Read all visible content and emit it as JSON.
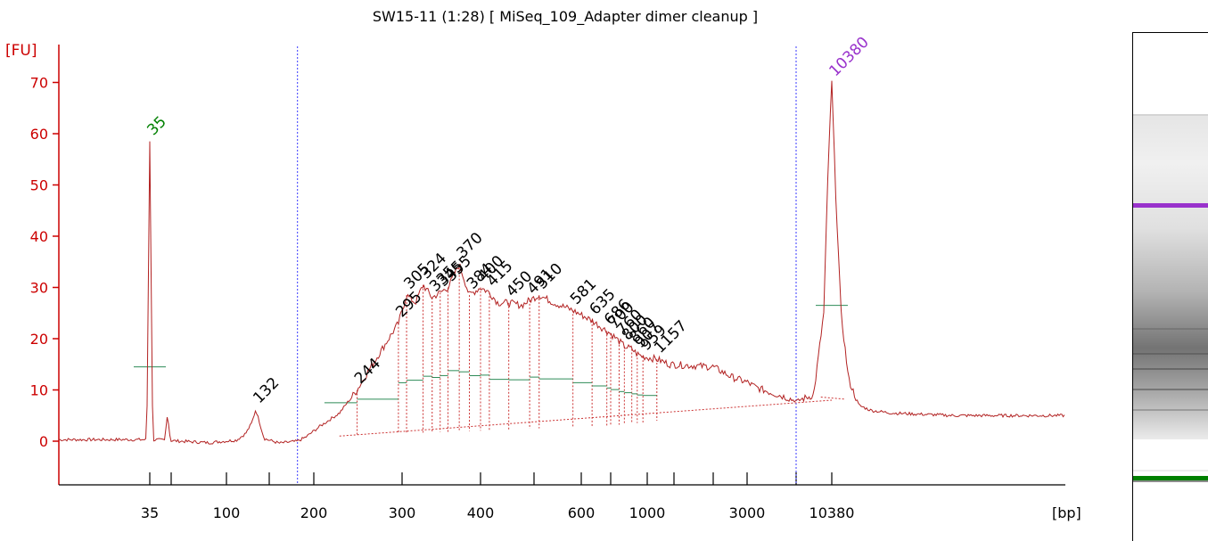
{
  "chart_data": {
    "type": "line",
    "title": "SW15-11 (1:28)  [ MiSeq_109_Adapter dimer cleanup ]",
    "ylabel": "[FU]",
    "xlabel": "[bp]",
    "ylim": [
      -9,
      79
    ],
    "yticks": [
      0,
      10,
      20,
      30,
      40,
      50,
      60,
      70
    ],
    "x_scale": "categorical-log",
    "x_tick_labels": [
      {
        "label": "35",
        "bp": 35
      },
      {
        "label": "100",
        "bp": 100
      },
      {
        "label": "200",
        "bp": 200
      },
      {
        "label": "300",
        "bp": 300
      },
      {
        "label": "400",
        "bp": 400
      },
      {
        "label": "600",
        "bp": 600
      },
      {
        "label": "1000",
        "bp": 1000
      },
      {
        "label": "3000",
        "bp": 3000
      },
      {
        "label": "10380",
        "bp": 10380
      }
    ],
    "x_tick_marks_bp": [
      35,
      50,
      100,
      150,
      200,
      300,
      400,
      500,
      600,
      700,
      1000,
      1500,
      2000,
      3000,
      7000,
      10380
    ],
    "ladder_points": [
      {
        "bp": 35,
        "px": 168
      },
      {
        "bp": 50,
        "px": 192
      },
      {
        "bp": 100,
        "px": 254
      },
      {
        "bp": 150,
        "px": 302
      },
      {
        "bp": 200,
        "px": 352
      },
      {
        "bp": 300,
        "px": 451
      },
      {
        "bp": 400,
        "px": 539
      },
      {
        "bp": 500,
        "px": 599
      },
      {
        "bp": 600,
        "px": 652
      },
      {
        "bp": 700,
        "px": 685
      },
      {
        "bp": 1000,
        "px": 726
      },
      {
        "bp": 1500,
        "px": 756
      },
      {
        "bp": 2000,
        "px": 800
      },
      {
        "bp": 3000,
        "px": 838
      },
      {
        "bp": 7000,
        "px": 893
      },
      {
        "bp": 10380,
        "px": 933
      }
    ],
    "gate_lines_bp": [
      180,
      7000
    ],
    "series": [
      {
        "color": "#b22222",
        "points": [
          [
            35,
            0.3
          ],
          [
            45,
            0.2
          ],
          [
            50,
            0.1
          ],
          [
            80,
            -0.3
          ],
          [
            110,
            0.2
          ],
          [
            120,
            1.5
          ],
          [
            127,
            3.5
          ],
          [
            132,
            6.2
          ],
          [
            137,
            3.6
          ],
          [
            143,
            0.5
          ],
          [
            160,
            -0.4
          ],
          [
            180,
            0.0
          ],
          [
            190,
            0.8
          ],
          [
            205,
            2.8
          ],
          [
            225,
            5.5
          ],
          [
            244,
            10.0
          ],
          [
            260,
            14.5
          ],
          [
            280,
            19.5
          ],
          [
            295,
            23.0
          ],
          [
            305,
            28.5
          ],
          [
            315,
            27.0
          ],
          [
            324,
            30.5
          ],
          [
            335,
            28.0
          ],
          [
            345,
            29.0
          ],
          [
            355,
            30.0
          ],
          [
            370,
            34.5
          ],
          [
            384,
            28.5
          ],
          [
            400,
            30.0
          ],
          [
            415,
            29.0
          ],
          [
            430,
            27.0
          ],
          [
            450,
            27.0
          ],
          [
            475,
            26.5
          ],
          [
            491,
            27.5
          ],
          [
            510,
            28.5
          ],
          [
            540,
            27.0
          ],
          [
            581,
            25.5
          ],
          [
            620,
            24.0
          ],
          [
            635,
            23.5
          ],
          [
            660,
            22.5
          ],
          [
            686,
            21.5
          ],
          [
            700,
            21.0
          ],
          [
            760,
            19.5
          ],
          [
            800,
            18.5
          ],
          [
            860,
            18.0
          ],
          [
            907,
            17.0
          ],
          [
            959,
            16.5
          ],
          [
            1157,
            16.0
          ],
          [
            1400,
            15.0
          ],
          [
            2000,
            14.5
          ],
          [
            2500,
            12.5
          ],
          [
            3000,
            11.5
          ],
          [
            3500,
            10.5
          ],
          [
            4500,
            9.5
          ],
          [
            6000,
            8.5
          ],
          [
            7000,
            7.8
          ],
          [
            8500,
            9.0
          ],
          [
            9500,
            25.0
          ],
          [
            10000,
            55.0
          ],
          [
            10380,
            70.0
          ],
          [
            10800,
            50.0
          ],
          [
            11500,
            25.0
          ],
          [
            12500,
            12.0
          ],
          [
            14000,
            7.0
          ],
          [
            16000,
            6.0
          ],
          [
            20000,
            5.5
          ],
          [
            30000,
            5.2
          ],
          [
            40000,
            5.0
          ]
        ]
      }
    ],
    "extra_spikes": [
      {
        "bp": 35,
        "fu": 58.5
      },
      {
        "bp": 47,
        "fu": 5.2
      }
    ],
    "peak_labels": [
      {
        "label": "35",
        "bp": 35,
        "fu": 58.5,
        "color": "#008000"
      },
      {
        "label": "132",
        "bp": 132,
        "fu": 6.2,
        "color": "#000000"
      },
      {
        "label": "244",
        "bp": 244,
        "fu": 10.0,
        "color": "#000000"
      },
      {
        "label": "295",
        "bp": 295,
        "fu": 23.0,
        "color": "#000000"
      },
      {
        "label": "305",
        "bp": 305,
        "fu": 28.5,
        "color": "#000000"
      },
      {
        "label": "324",
        "bp": 324,
        "fu": 30.5,
        "color": "#000000"
      },
      {
        "label": "335",
        "bp": 335,
        "fu": 28.0,
        "color": "#000000"
      },
      {
        "label": "345",
        "bp": 345,
        "fu": 29.0,
        "color": "#000000"
      },
      {
        "label": "355",
        "bp": 355,
        "fu": 30.0,
        "color": "#000000"
      },
      {
        "label": "370",
        "bp": 370,
        "fu": 34.5,
        "color": "#000000"
      },
      {
        "label": "384",
        "bp": 384,
        "fu": 28.5,
        "color": "#000000"
      },
      {
        "label": "400",
        "bp": 400,
        "fu": 30.0,
        "color": "#000000"
      },
      {
        "label": "415",
        "bp": 415,
        "fu": 29.0,
        "color": "#000000"
      },
      {
        "label": "450",
        "bp": 450,
        "fu": 27.0,
        "color": "#000000"
      },
      {
        "label": "491",
        "bp": 491,
        "fu": 27.5,
        "color": "#000000"
      },
      {
        "label": "510",
        "bp": 510,
        "fu": 28.5,
        "color": "#000000"
      },
      {
        "label": "581",
        "bp": 581,
        "fu": 25.5,
        "color": "#000000"
      },
      {
        "label": "635",
        "bp": 635,
        "fu": 23.5,
        "color": "#000000"
      },
      {
        "label": "686",
        "bp": 686,
        "fu": 21.5,
        "color": "#000000"
      },
      {
        "label": "700",
        "bp": 700,
        "fu": 21.0,
        "color": "#000000"
      },
      {
        "label": "760",
        "bp": 760,
        "fu": 19.5,
        "color": "#000000"
      },
      {
        "label": "800",
        "bp": 800,
        "fu": 18.5,
        "color": "#000000"
      },
      {
        "label": "860",
        "bp": 860,
        "fu": 18.0,
        "color": "#000000"
      },
      {
        "label": "907",
        "bp": 907,
        "fu": 17.0,
        "color": "#000000"
      },
      {
        "label": "959",
        "bp": 959,
        "fu": 16.5,
        "color": "#000000"
      },
      {
        "label": "1157",
        "bp": 1157,
        "fu": 16.0,
        "color": "#000000"
      },
      {
        "label": "10380",
        "bp": 10380,
        "fu": 70.0,
        "color": "#9932cc"
      }
    ],
    "peak_integration": [
      {
        "bp": 35,
        "half_fu": 14.5
      },
      {
        "bp": 10380,
        "half_fu": 26.5
      }
    ],
    "smear_dividers_bp": [
      244,
      295,
      305,
      324,
      335,
      345,
      355,
      370,
      384,
      400,
      415,
      450,
      491,
      510,
      581,
      635,
      686,
      700,
      760,
      800,
      860,
      907,
      959,
      1157
    ],
    "smear_baseline": {
      "start_bp": 225,
      "start_fu": 1.0,
      "end_bp": 10380,
      "end_fu": 8.0
    },
    "grid": false,
    "legend": "none"
  },
  "gel": {
    "colors": {
      "upper_marker": "#9932cc",
      "lower_marker": "#008000"
    },
    "band_levels": [
      {
        "position": 0.16,
        "intensity": 0.15
      },
      {
        "position": 0.34,
        "intensity": 0.9
      },
      {
        "position": 0.58,
        "intensity": 0.25
      },
      {
        "position": 0.63,
        "intensity": 0.35
      },
      {
        "position": 0.66,
        "intensity": 0.5
      },
      {
        "position": 0.7,
        "intensity": 0.55
      },
      {
        "position": 0.74,
        "intensity": 0.4
      },
      {
        "position": 0.86,
        "intensity": 0.15
      },
      {
        "position": 0.88,
        "intensity": 0.9
      }
    ]
  }
}
